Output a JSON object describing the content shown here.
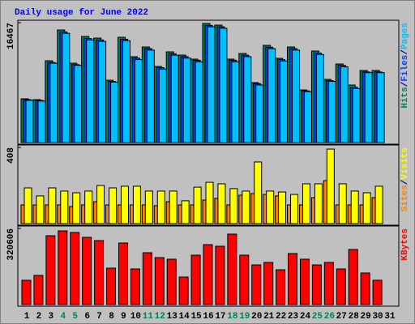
{
  "title": "Daily usage for June 2022",
  "legend_separator": "/",
  "chart_data": [
    {
      "type": "bar",
      "ylim": [
        0,
        16467
      ],
      "yticks": [
        16467
      ],
      "series": [
        {
          "name": "Hits",
          "color": "#00805c",
          "values": [
            6008,
            5897,
            11238,
            15466,
            10904,
            14576,
            14353,
            8567,
            14464,
            11794,
            13129,
            10459,
            12461,
            12017,
            11460,
            16356,
            16133,
            11460,
            12239,
            8233,
            13352,
            11571,
            13129,
            7232,
            12573,
            8679,
            10793,
            7900,
            9902,
            9902,
            null
          ]
        },
        {
          "name": "Files",
          "color": "#0040ff",
          "values": [
            5900,
            5800,
            11000,
            15200,
            10700,
            14300,
            14100,
            8400,
            14200,
            11600,
            12900,
            10300,
            12200,
            11800,
            11300,
            16100,
            15900,
            11300,
            12000,
            8100,
            13100,
            11400,
            12900,
            7100,
            12300,
            8500,
            10600,
            7600,
            9700,
            9700,
            null
          ]
        },
        {
          "name": "Pages",
          "color": "#00c0ff",
          "values": [
            5800,
            5700,
            10900,
            15000,
            10600,
            14100,
            13900,
            8300,
            14000,
            11400,
            12700,
            10100,
            12000,
            11600,
            11100,
            15900,
            15700,
            11100,
            11800,
            7900,
            12900,
            11200,
            12700,
            7000,
            12100,
            8400,
            10400,
            7400,
            9600,
            9600,
            null
          ]
        }
      ]
    },
    {
      "type": "bar",
      "ylim": [
        0,
        408
      ],
      "yticks": [
        408
      ],
      "series": [
        {
          "name": "Sites",
          "color": "#ff8000",
          "values": [
            100,
            100,
            100,
            100,
            91,
            100,
            117,
            100,
            100,
            100,
            100,
            96,
            117,
            100,
            100,
            126,
            135,
            100,
            152,
            161,
            156,
            148,
            100,
            100,
            139,
            230,
            100,
            100,
            100,
            139,
            null
          ]
        },
        {
          "name": "Visits",
          "color": "#ffff00",
          "values": [
            191,
            148,
            191,
            174,
            165,
            174,
            204,
            191,
            200,
            200,
            174,
            174,
            174,
            122,
            195,
            221,
            213,
            187,
            174,
            330,
            174,
            169,
            156,
            213,
            213,
            399,
            213,
            174,
            165,
            200,
            null
          ]
        }
      ]
    },
    {
      "type": "bar",
      "ylim": [
        0,
        320606
      ],
      "yticks": [
        320606
      ],
      "series": [
        {
          "name": "KBytes",
          "color": "#ff0000",
          "values": [
            102321,
            122786,
            289912,
            310377,
            303555,
            283091,
            269447,
            153482,
            259215,
            150072,
            218287,
            197822,
            190998,
            115963,
            208054,
            252393,
            245570,
            296729,
            208054,
            167123,
            177355,
            146658,
            214874,
            190998,
            167123,
            177355,
            150072,
            231925,
            133017,
            102321,
            null
          ]
        }
      ],
      "categories": [
        "1",
        "2",
        "3",
        "4",
        "5",
        "6",
        "7",
        "8",
        "9",
        "10",
        "11",
        "12",
        "13",
        "14",
        "15",
        "16",
        "17",
        "18",
        "19",
        "20",
        "21",
        "22",
        "23",
        "24",
        "25",
        "26",
        "27",
        "28",
        "29",
        "30",
        "31"
      ],
      "category_colors": [
        "#000000",
        "#000000",
        "#000000",
        "#00805c",
        "#00805c",
        "#000000",
        "#000000",
        "#000000",
        "#000000",
        "#000000",
        "#00805c",
        "#00805c",
        "#000000",
        "#000000",
        "#000000",
        "#000000",
        "#000000",
        "#00805c",
        "#00805c",
        "#000000",
        "#000000",
        "#000000",
        "#000000",
        "#000000",
        "#00805c",
        "#00805c",
        "#000000",
        "#000000",
        "#000000",
        "#000000",
        "#000000"
      ]
    }
  ]
}
